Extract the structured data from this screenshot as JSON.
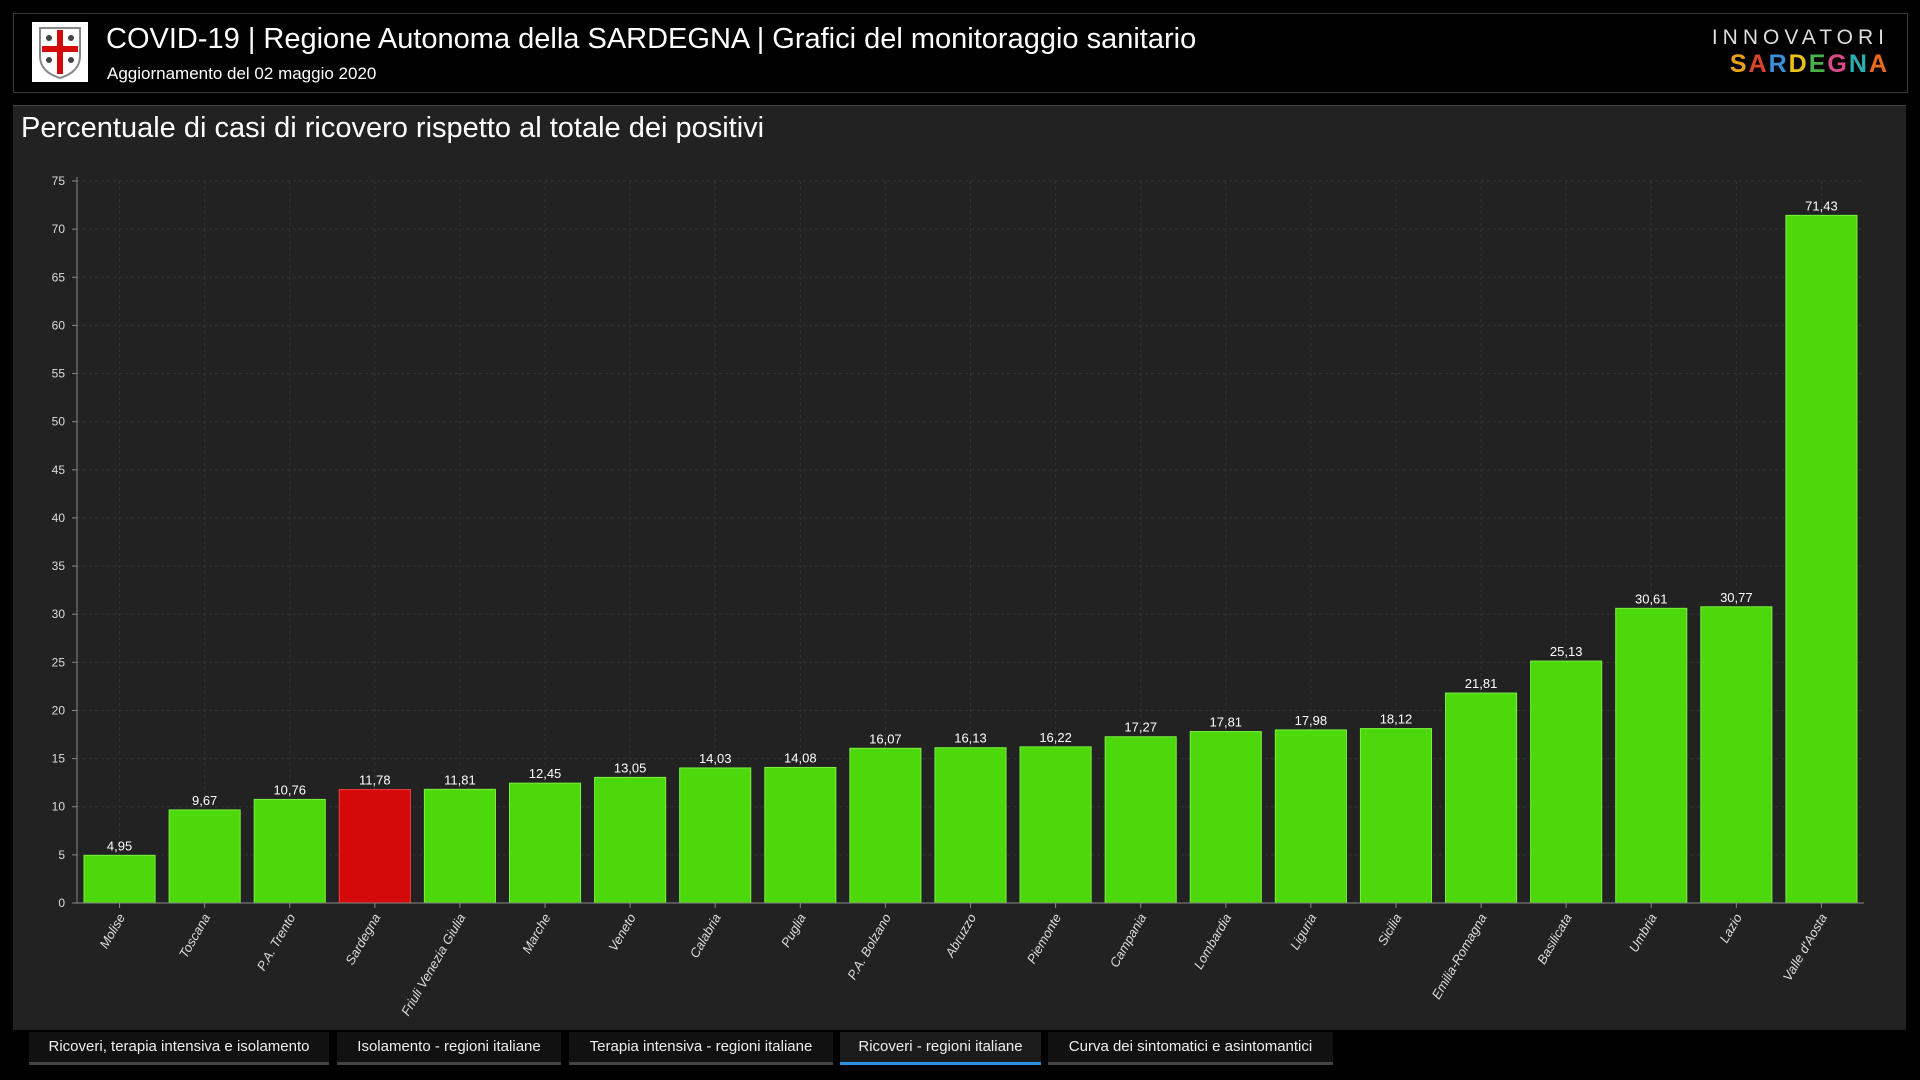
{
  "header": {
    "title": "COVID-19 | Regione Autonoma della SARDEGNA | Grafici del monitoraggio sanitario",
    "subtitle": "Aggiornamento del 02 maggio 2020",
    "brand_top": "INNOVATORI",
    "brand_bottom": "SARDEGNA",
    "brand_colors": [
      "#e8a21a",
      "#d9442b",
      "#3a8fd6",
      "#e8c21a",
      "#4ab04a",
      "#d94a8a",
      "#2bb0b0",
      "#e86a1a"
    ]
  },
  "tabs": [
    {
      "label": "Ricoveri, terapia intensiva e isolamento",
      "active": false
    },
    {
      "label": "Isolamento - regioni italiane",
      "active": false
    },
    {
      "label": "Terapia intensiva - regioni italiane",
      "active": false
    },
    {
      "label": "Ricoveri - regioni italiane",
      "active": true
    },
    {
      "label": "Curva dei sintomatici e asintomantici",
      "active": false
    }
  ],
  "chart_data": {
    "type": "bar",
    "title": "Percentuale di casi di ricovero rispetto al totale dei positivi",
    "xlabel": "",
    "ylabel": "",
    "ylim": [
      0,
      75
    ],
    "yticks": [
      0,
      5,
      10,
      15,
      20,
      25,
      30,
      35,
      40,
      45,
      50,
      55,
      60,
      65,
      70,
      75
    ],
    "grid": true,
    "categories": [
      "Molise",
      "Toscana",
      "P.A. Trento",
      "Sardegna",
      "Friuli Venezia Giulia",
      "Marche",
      "Veneto",
      "Calabria",
      "Puglia",
      "P.A. Bolzano",
      "Abruzzo",
      "Piemonte",
      "Campania",
      "Lombardia",
      "Liguria",
      "Sicilia",
      "Emilia-Romagna",
      "Basilicata",
      "Umbria",
      "Lazio",
      "Valle d'Aosta"
    ],
    "values": [
      4.95,
      9.67,
      10.76,
      11.78,
      11.81,
      12.45,
      13.05,
      14.03,
      14.08,
      16.07,
      16.13,
      16.22,
      17.27,
      17.81,
      17.98,
      18.12,
      21.81,
      25.13,
      30.61,
      30.77,
      71.43
    ],
    "labels": [
      "4,95",
      "9,67",
      "10,76",
      "11,78",
      "11,81",
      "12,45",
      "13,05",
      "14,03",
      "14,08",
      "16,07",
      "16,13",
      "16,22",
      "17,27",
      "17,81",
      "17,98",
      "18,12",
      "21,81",
      "25,13",
      "30,61",
      "30,77",
      "71,43"
    ],
    "highlight": "Sardegna",
    "bar_color": "#4cd80a",
    "highlight_color": "#d40a0a"
  }
}
